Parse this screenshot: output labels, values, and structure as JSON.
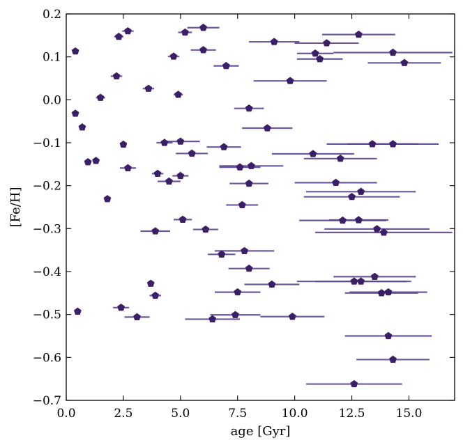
{
  "chart_data": {
    "type": "scatter",
    "xlabel": "age [Gyr]",
    "ylabel": "[Fe/H]",
    "xlim": [
      0,
      17
    ],
    "ylim": [
      -0.7,
      0.2
    ],
    "xticks": [
      {
        "v": 0,
        "label": "0.0"
      },
      {
        "v": 2.5,
        "label": "2.5"
      },
      {
        "v": 5,
        "label": "5.0"
      },
      {
        "v": 7.5,
        "label": "7.5"
      },
      {
        "v": 10,
        "label": "10.0"
      },
      {
        "v": 12.5,
        "label": "12.5"
      },
      {
        "v": 15,
        "label": "15.0"
      }
    ],
    "yticks": [
      {
        "v": 0.2,
        "label": "0.2"
      },
      {
        "v": 0.1,
        "label": "0.1"
      },
      {
        "v": 0,
        "label": "0.0"
      },
      {
        "v": -0.1,
        "label": "−0.1"
      },
      {
        "v": -0.2,
        "label": "−0.2"
      },
      {
        "v": -0.3,
        "label": "−0.3"
      },
      {
        "v": -0.4,
        "label": "−0.4"
      },
      {
        "v": -0.5,
        "label": "−0.5"
      },
      {
        "v": -0.6,
        "label": "−0.6"
      },
      {
        "v": -0.7,
        "label": "−0.7"
      }
    ],
    "grid": false,
    "marker": "pentagon",
    "point_color": "#3b1f66",
    "errorbar_color": "#5a4690",
    "points": [
      {
        "x": 0.4,
        "y": 0.113,
        "xerr": 0
      },
      {
        "x": 0.4,
        "y": -0.032,
        "xerr": 0
      },
      {
        "x": 0.7,
        "y": -0.064,
        "xerr": 0
      },
      {
        "x": 0.95,
        "y": -0.145,
        "xerr": 0.15
      },
      {
        "x": 1.3,
        "y": -0.142,
        "xerr": 0.15
      },
      {
        "x": 1.5,
        "y": 0.005,
        "xerr": 0.2
      },
      {
        "x": 1.8,
        "y": -0.231,
        "xerr": 0
      },
      {
        "x": 0.5,
        "y": -0.493,
        "xerr": 0
      },
      {
        "x": 2.2,
        "y": 0.055,
        "xerr": 0.25
      },
      {
        "x": 2.3,
        "y": 0.147,
        "xerr": 0.2
      },
      {
        "x": 2.7,
        "y": 0.16,
        "xerr": 0.25
      },
      {
        "x": 2.5,
        "y": -0.104,
        "xerr": 0
      },
      {
        "x": 2.7,
        "y": -0.159,
        "xerr": 0.35
      },
      {
        "x": 2.4,
        "y": -0.484,
        "xerr": 0.35
      },
      {
        "x": 3.1,
        "y": -0.506,
        "xerr": 0.55
      },
      {
        "x": 3.6,
        "y": 0.026,
        "xerr": 0.25
      },
      {
        "x": 3.7,
        "y": -0.428,
        "xerr": 0
      },
      {
        "x": 3.9,
        "y": -0.306,
        "xerr": 0.65
      },
      {
        "x": 3.9,
        "y": -0.456,
        "xerr": 0.25
      },
      {
        "x": 4.0,
        "y": -0.172,
        "xerr": 0.25
      },
      {
        "x": 4.3,
        "y": -0.1,
        "xerr": 0.35
      },
      {
        "x": 4.5,
        "y": -0.19,
        "xerr": 0.5
      },
      {
        "x": 4.7,
        "y": 0.101,
        "xerr": 0.25
      },
      {
        "x": 4.9,
        "y": 0.012,
        "xerr": 0.2
      },
      {
        "x": 5.0,
        "y": -0.097,
        "xerr": 0.85
      },
      {
        "x": 5.0,
        "y": -0.177,
        "xerr": 0.35
      },
      {
        "x": 5.1,
        "y": -0.279,
        "xerr": 0.4
      },
      {
        "x": 5.2,
        "y": 0.157,
        "xerr": 0.3
      },
      {
        "x": 5.5,
        "y": -0.125,
        "xerr": 0.7
      },
      {
        "x": 6.0,
        "y": 0.168,
        "xerr": 0.7
      },
      {
        "x": 6.0,
        "y": 0.116,
        "xerr": 0.55
      },
      {
        "x": 6.1,
        "y": -0.302,
        "xerr": 0.55
      },
      {
        "x": 6.4,
        "y": -0.511,
        "xerr": 1.2
      },
      {
        "x": 6.8,
        "y": -0.36,
        "xerr": 0.6
      },
      {
        "x": 6.9,
        "y": -0.11,
        "xerr": 0.75
      },
      {
        "x": 7.0,
        "y": 0.079,
        "xerr": 0.55
      },
      {
        "x": 7.4,
        "y": -0.501,
        "xerr": 1.1
      },
      {
        "x": 7.5,
        "y": -0.448,
        "xerr": 1.0
      },
      {
        "x": 7.6,
        "y": -0.157,
        "xerr": 0.9
      },
      {
        "x": 7.7,
        "y": -0.245,
        "xerr": 0.7
      },
      {
        "x": 7.8,
        "y": -0.352,
        "xerr": 1.3
      },
      {
        "x": 8.0,
        "y": -0.02,
        "xerr": 0.65
      },
      {
        "x": 8.0,
        "y": -0.195,
        "xerr": 0.85
      },
      {
        "x": 8.0,
        "y": -0.393,
        "xerr": 0.9
      },
      {
        "x": 8.1,
        "y": -0.154,
        "xerr": 1.4
      },
      {
        "x": 8.8,
        "y": -0.066,
        "xerr": 1.1
      },
      {
        "x": 9.0,
        "y": -0.43,
        "xerr": 1.2
      },
      {
        "x": 9.1,
        "y": 0.135,
        "xerr": 1.1
      },
      {
        "x": 9.8,
        "y": 0.044,
        "xerr": 1.6
      },
      {
        "x": 9.9,
        "y": -0.505,
        "xerr": 1.4
      },
      {
        "x": 10.8,
        "y": -0.126,
        "xerr": 1.8
      },
      {
        "x": 10.9,
        "y": 0.108,
        "xerr": 0.8
      },
      {
        "x": 11.1,
        "y": 0.095,
        "xerr": 1.0
      },
      {
        "x": 11.4,
        "y": 0.132,
        "xerr": 1.4
      },
      {
        "x": 11.8,
        "y": -0.193,
        "xerr": 1.8
      },
      {
        "x": 12.0,
        "y": -0.137,
        "xerr": 1.6
      },
      {
        "x": 12.1,
        "y": -0.281,
        "xerr": 1.9
      },
      {
        "x": 12.5,
        "y": -0.226,
        "xerr": 2.1
      },
      {
        "x": 12.6,
        "y": -0.662,
        "xerr": 2.1
      },
      {
        "x": 12.6,
        "y": -0.423,
        "xerr": 2.5
      },
      {
        "x": 12.8,
        "y": 0.152,
        "xerr": 1.6
      },
      {
        "x": 12.8,
        "y": -0.28,
        "xerr": 1.3
      },
      {
        "x": 12.9,
        "y": -0.423,
        "xerr": 2.0
      },
      {
        "x": 12.9,
        "y": -0.214,
        "xerr": 2.4
      },
      {
        "x": 13.4,
        "y": -0.103,
        "xerr": 2.0
      },
      {
        "x": 13.5,
        "y": -0.412,
        "xerr": 1.8
      },
      {
        "x": 13.6,
        "y": -0.301,
        "xerr": 2.3
      },
      {
        "x": 13.8,
        "y": -0.45,
        "xerr": 1.6
      },
      {
        "x": 13.9,
        "y": -0.309,
        "xerr": 3.0
      },
      {
        "x": 14.1,
        "y": -0.55,
        "xerr": 1.9
      },
      {
        "x": 14.1,
        "y": -0.448,
        "xerr": 1.7
      },
      {
        "x": 14.3,
        "y": 0.11,
        "xerr": 2.6
      },
      {
        "x": 14.3,
        "y": -0.103,
        "xerr": 2.0
      },
      {
        "x": 14.3,
        "y": -0.605,
        "xerr": 1.6
      },
      {
        "x": 14.8,
        "y": 0.086,
        "xerr": 1.6
      }
    ]
  }
}
